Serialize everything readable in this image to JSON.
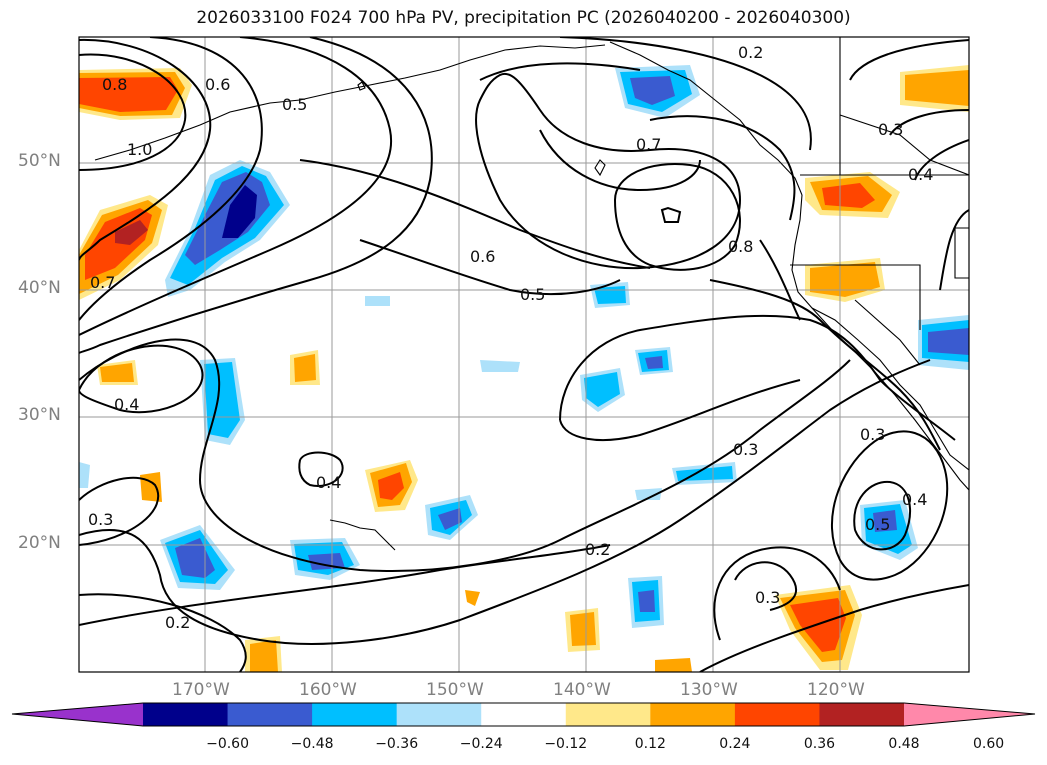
{
  "title": "2026033100 F024 700 hPa PV, precipitation PC (2026040200 - 2026040300)",
  "lat_labels": [
    "50°N",
    "40°N",
    "30°N",
    "20°N"
  ],
  "lon_labels": [
    "170°W",
    "160°W",
    "150°W",
    "140°W",
    "130°W",
    "120°W"
  ],
  "contour_labels": [
    "0.8",
    "1.0",
    "0.6",
    "0.5",
    "0.2",
    "0.3",
    "0.4",
    "0.7",
    "0.6",
    "0.5",
    "0.8",
    "0.7",
    "0.4",
    "0.4",
    "0.3",
    "0.2",
    "0.2",
    "0.3",
    "0.3",
    "0.5",
    "0.4",
    "0.3"
  ],
  "colorbar": {
    "ticks": [
      "−0.60",
      "−0.48",
      "−0.36",
      "−0.24",
      "−0.12",
      "0.12",
      "0.24",
      "0.36",
      "0.48",
      "0.60"
    ],
    "colors": [
      "#9932CC",
      "#00008B",
      "#3A5BD0",
      "#00BFFF",
      "#ADE1FA",
      "#FFFFFF",
      "#FFE88A",
      "#FFA500",
      "#FF4500",
      "#B22222",
      "#FF88AA"
    ]
  }
}
